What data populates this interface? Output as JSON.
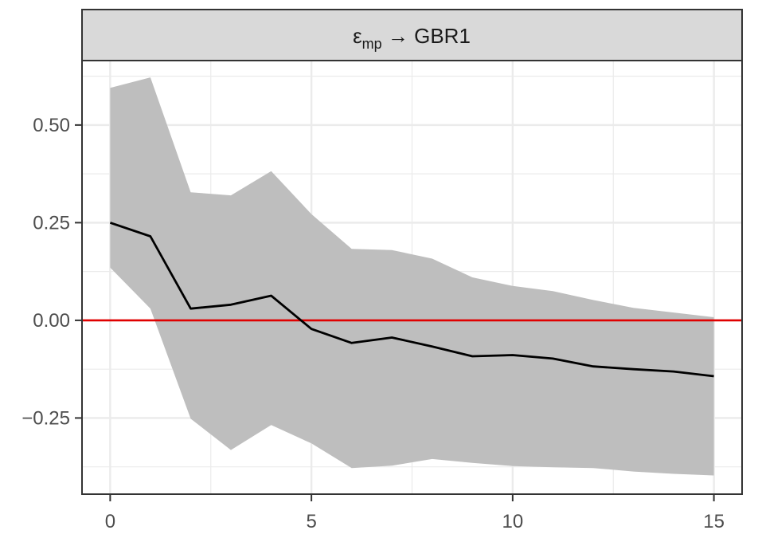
{
  "panel": {
    "title_symbol": "ε",
    "title_subscript": "mp",
    "title_rest": " → GBR1"
  },
  "colors": {
    "band": "#bebebe",
    "line": "#000000",
    "zero_line": "#e00000",
    "strip_fill": "#d9d9d9",
    "grid": "#ebebeb"
  },
  "chart_data": {
    "type": "area",
    "x": [
      0,
      1,
      2,
      3,
      4,
      5,
      6,
      7,
      8,
      9,
      10,
      11,
      12,
      13,
      14,
      15
    ],
    "series": [
      {
        "type": "line",
        "values": [
          0.25,
          0.215,
          0.03,
          0.04,
          0.063,
          -0.022,
          -0.058,
          -0.044,
          -0.067,
          -0.092,
          -0.089,
          -0.098,
          -0.118,
          -0.125,
          -0.131,
          -0.143
        ]
      },
      {
        "type": "band",
        "upper": [
          0.595,
          0.622,
          0.328,
          0.32,
          0.382,
          0.272,
          0.183,
          0.18,
          0.158,
          0.11,
          0.088,
          0.075,
          0.052,
          0.032,
          0.02,
          0.008
        ],
        "lower": [
          0.135,
          0.03,
          -0.252,
          -0.332,
          -0.268,
          -0.315,
          -0.378,
          -0.372,
          -0.355,
          -0.365,
          -0.373,
          -0.376,
          -0.378,
          -0.387,
          -0.393,
          -0.397
        ]
      }
    ],
    "hline": 0,
    "xlim": [
      -0.7,
      15.7
    ],
    "ylim": [
      -0.445,
      0.665
    ],
    "xticks": [
      0,
      5,
      10,
      15
    ],
    "xtick_labels": [
      "0",
      "5",
      "10",
      "15"
    ],
    "yticks": [
      -0.25,
      0,
      0.25,
      0.5
    ],
    "ytick_labels": [
      "−0.25",
      "0.00",
      "0.25",
      "0.50"
    ],
    "grid": true,
    "xlabel": "",
    "ylabel": ""
  }
}
